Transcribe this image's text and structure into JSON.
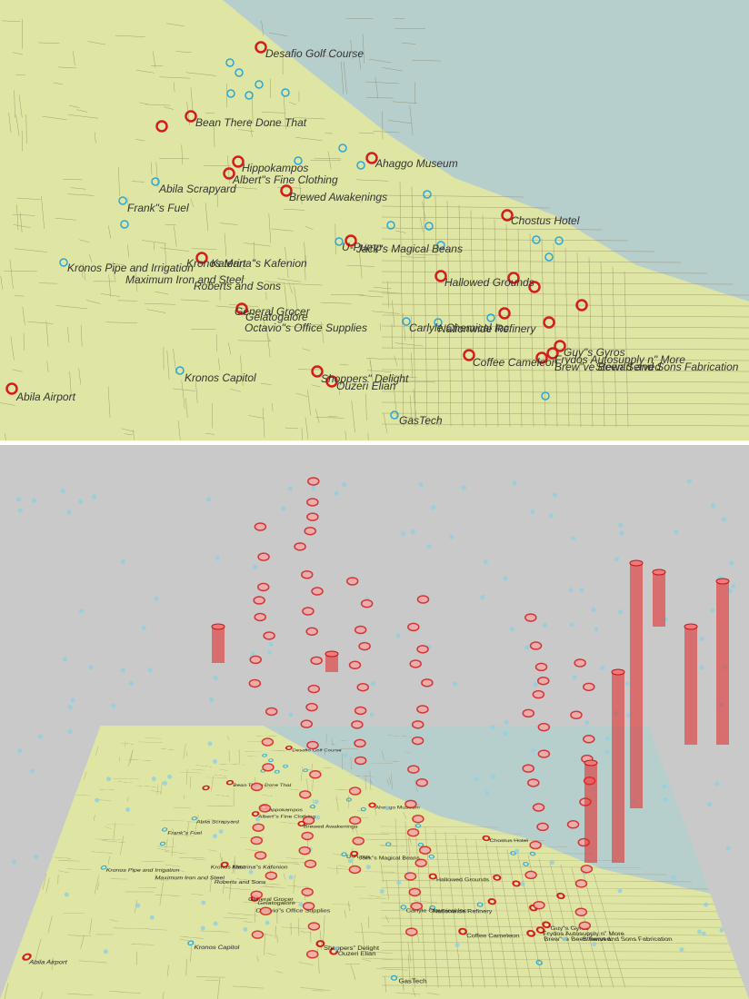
{
  "map": {
    "locations": [
      "Desafio Golf Course",
      "Bean There Done That",
      "Hippokampos",
      "Albert\"s Fine Clothing",
      "Ahaggo Museum",
      "Brewed Awakenings",
      "Abila Scrapyard",
      "Frank\"s Fuel",
      "Chostus Hotel",
      "U-Pump",
      "Jack\"s Magical Beans",
      "Kronos Pipe and Irrigation",
      "Kronos Mart",
      "Katerina\"s Kafenion",
      "Maximum Iron and Steel",
      "Roberts and Sons",
      "Hallowed Grounds",
      "General Grocer",
      "Gelatogalore",
      "Octavio\"s Office Supplies",
      "Carlyle Chemical Inc.",
      "Nationwide Refinery",
      "Guy\"s Gyros",
      "Frydos Autosupply n\" More",
      "Coffee Cameleon",
      "Brew\"ve Been Served",
      "Stewart and Sons Fabrication",
      "Kronos Capitol",
      "Shoppers\" Delight",
      "Ouzeri Elian",
      "Abila Airport",
      "GasTech"
    ]
  }
}
